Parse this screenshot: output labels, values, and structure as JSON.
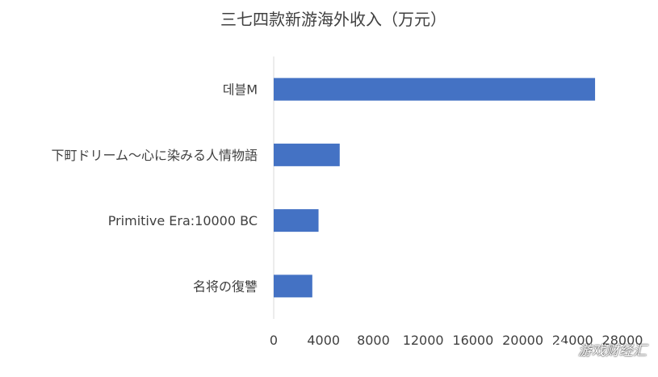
{
  "chart_data": {
    "type": "bar",
    "orientation": "horizontal",
    "title": "三七四款新游海外收入（万元）",
    "categories": [
      "데블M",
      "下町ドリーム～心に染みる人情物語",
      "Primitive Era:10000 BC",
      "名将の復讐"
    ],
    "values": [
      25800,
      5300,
      3600,
      3100
    ],
    "xlim": [
      0,
      28000
    ],
    "xticks": [
      "0",
      "4000",
      "8000",
      "12000",
      "16000",
      "20000",
      "24000",
      "28000"
    ],
    "bar_color": "#4472C4",
    "grid": false,
    "legend": "none"
  },
  "watermark": {
    "text": "游戏财经汇",
    "icon": "wechat-icon"
  }
}
